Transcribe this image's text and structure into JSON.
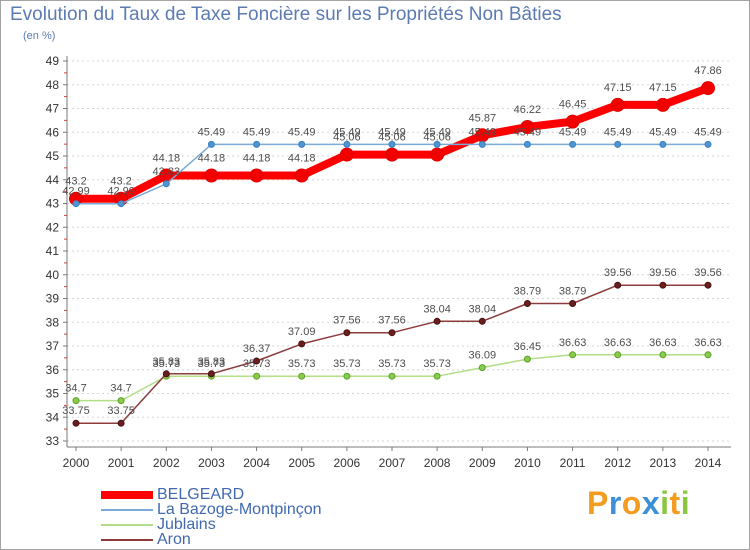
{
  "chart_data": {
    "type": "line",
    "title": "Evolution du Taux de Taxe Foncière sur les Propriétés Non Bâties",
    "subtitle": "(en %)",
    "xlabel": "",
    "ylabel": "",
    "x": [
      2000,
      2001,
      2002,
      2003,
      2004,
      2005,
      2006,
      2007,
      2008,
      2009,
      2010,
      2011,
      2012,
      2013,
      2014
    ],
    "ylim": [
      33,
      49
    ],
    "grid": true,
    "legend_position": "bottom-left",
    "series": [
      {
        "name": "BELGEARD",
        "color": "#ff0000",
        "marker_color": "#f20000",
        "marker_stroke": "#e00000",
        "values": [
          43.2,
          43.2,
          44.18,
          44.18,
          44.18,
          44.18,
          45.06,
          45.06,
          45.06,
          45.87,
          46.22,
          46.45,
          47.15,
          47.15,
          47.86
        ]
      },
      {
        "name": "La Bazoge-Montpinçon",
        "color": "#7aaad8",
        "marker_color": "#4f95d2",
        "marker_stroke": "#3a7fbf",
        "values": [
          42.99,
          42.99,
          43.83,
          45.49,
          45.49,
          45.49,
          45.49,
          45.49,
          45.49,
          45.49,
          45.49,
          45.49,
          45.49,
          45.49,
          45.49
        ]
      },
      {
        "name": "Jublains",
        "color": "#b2de86",
        "marker_color": "#88cc4c",
        "marker_stroke": "#5e9e2a",
        "values": [
          34.7,
          34.7,
          35.73,
          35.73,
          35.73,
          35.73,
          35.73,
          35.73,
          35.73,
          36.09,
          36.45,
          36.63,
          36.63,
          36.63,
          36.63
        ]
      },
      {
        "name": "Aron",
        "color": "#8c3c3c",
        "marker_color": "#6a1f1f",
        "marker_stroke": "#4a1010",
        "values": [
          33.75,
          33.75,
          35.83,
          35.83,
          36.37,
          37.09,
          37.56,
          37.56,
          38.04,
          38.04,
          38.79,
          38.79,
          39.56,
          39.56,
          39.56
        ]
      }
    ]
  },
  "logo": {
    "text": "Proxiti",
    "colors": [
      "#f39c1f",
      "#3d8fd6",
      "#f39c1f",
      "#3d8fd6",
      "#8cc63f",
      "#f39c1f",
      "#8cc63f"
    ]
  }
}
